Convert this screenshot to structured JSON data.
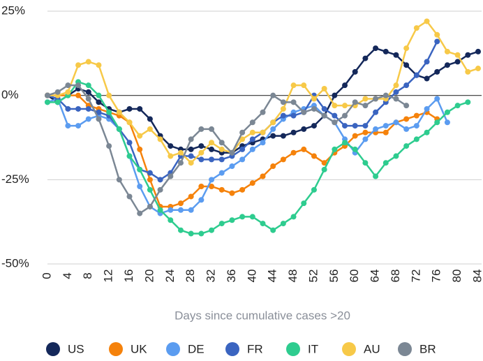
{
  "chart_data": {
    "type": "line",
    "x_label": "Days since cumulative cases >20",
    "x": [
      0,
      2,
      4,
      6,
      8,
      10,
      12,
      14,
      16,
      18,
      20,
      22,
      24,
      26,
      28,
      30,
      32,
      34,
      36,
      38,
      40,
      42,
      44,
      46,
      48,
      50,
      52,
      54,
      56,
      58,
      60,
      62,
      64,
      66,
      68,
      70,
      72,
      74,
      76,
      78,
      80,
      82,
      84
    ],
    "xlim": [
      0,
      84
    ],
    "xticks": [
      0,
      4,
      8,
      12,
      16,
      20,
      24,
      28,
      32,
      36,
      40,
      44,
      48,
      52,
      56,
      60,
      64,
      68,
      72,
      76,
      80,
      84
    ],
    "ylim": [
      -50,
      25
    ],
    "yticks": [
      {
        "value": -50,
        "label": "-50%"
      },
      {
        "value": -25,
        "label": "-25%"
      },
      {
        "value": 0,
        "label": "0%"
      },
      {
        "value": 25,
        "label": "25%"
      }
    ],
    "grid": true,
    "legend": "bottom",
    "series": [
      {
        "name": "US",
        "color": "#14285a",
        "values": [
          0,
          -2,
          0,
          2,
          1,
          -2,
          -4,
          -5,
          -4,
          -4,
          -7,
          -12,
          -15,
          -16,
          -16,
          -15,
          -16,
          -17,
          -17,
          -15,
          -14,
          -13,
          -12,
          -12,
          -11,
          -10,
          -9,
          -6,
          0,
          3,
          7,
          11,
          14,
          13,
          12,
          9,
          6,
          5,
          7,
          9,
          10,
          12,
          13
        ]
      },
      {
        "name": "UK",
        "color": "#f5820b",
        "values": [
          0,
          0,
          0,
          0,
          -3,
          -4,
          -5,
          -6,
          -8,
          -16,
          -25,
          -33,
          -33,
          -32,
          -30,
          -27,
          -27,
          -28,
          -29,
          -28,
          -26,
          -24,
          -21,
          -19,
          -17,
          -16,
          -18,
          -20,
          -17,
          -15,
          -12,
          -11,
          -11,
          -11,
          -8,
          -7,
          -6,
          -5,
          -7,
          null,
          null,
          null,
          null
        ]
      },
      {
        "name": "DE",
        "color": "#5b9cf0",
        "values": [
          -2,
          -1,
          -9,
          -9,
          -7,
          -6,
          -7,
          -10,
          -18,
          -27,
          -33,
          -35,
          -34,
          -34,
          -34,
          -31,
          -25,
          -23,
          -21,
          -19,
          -16,
          -14,
          -10,
          -7,
          -5,
          -4,
          -3,
          -6,
          -8,
          -13,
          -17,
          -13,
          -10,
          -9,
          -8,
          -10,
          -9,
          -4,
          -1,
          -8,
          null,
          null,
          null
        ]
      },
      {
        "name": "FR",
        "color": "#3a64c0",
        "values": [
          0,
          -1,
          -4,
          -4,
          -4,
          -5,
          -6,
          -10,
          -14,
          -22,
          -23,
          -25,
          -23,
          -18,
          -18,
          -19,
          -19,
          -19,
          -18,
          -16,
          -13,
          -11,
          -8,
          -6,
          -6,
          -5,
          0,
          -4,
          -6,
          -9,
          -9,
          -9,
          -5,
          -2,
          1,
          3,
          6,
          10,
          16,
          null,
          null,
          null,
          null
        ]
      },
      {
        "name": "IT",
        "color": "#2ecc8f",
        "values": [
          -2,
          -2,
          0,
          4,
          3,
          0,
          -5,
          -10,
          -18,
          -22,
          -28,
          -34,
          -37,
          -40,
          -41,
          -41,
          -40,
          -38,
          -37,
          -36,
          -36,
          -38,
          -40,
          -38,
          -36,
          -32,
          -28,
          -22,
          -16,
          -14,
          -16,
          -20,
          -24,
          -20,
          -18,
          -15,
          -13,
          -11,
          -8,
          -5,
          -3,
          -2,
          null
        ]
      },
      {
        "name": "AU",
        "color": "#f7c948",
        "values": [
          0,
          0,
          1,
          9,
          10,
          9,
          0,
          -5,
          -8,
          -12,
          -10,
          -13,
          -18,
          -17,
          -20,
          -17,
          -14,
          -16,
          -17,
          -13,
          -11,
          -11,
          -8,
          -4,
          3,
          3,
          -1,
          2,
          -3,
          -3,
          -3,
          -1,
          -1,
          -1,
          3,
          14,
          20,
          22,
          18,
          13,
          12,
          7,
          8
        ]
      },
      {
        "name": "BR",
        "color": "#7b8794",
        "values": [
          0,
          1,
          3,
          3,
          -1,
          -7,
          -15,
          -25,
          -30,
          -35,
          -33,
          -28,
          -24,
          -20,
          -13,
          -10,
          -10,
          -14,
          -17,
          -11,
          -8,
          -5,
          0,
          -2,
          -2,
          -5,
          -4,
          -6,
          -8,
          -6,
          -2,
          -3,
          -1,
          0,
          -1,
          -3,
          null,
          null,
          null,
          null,
          null,
          null,
          null
        ]
      }
    ]
  }
}
